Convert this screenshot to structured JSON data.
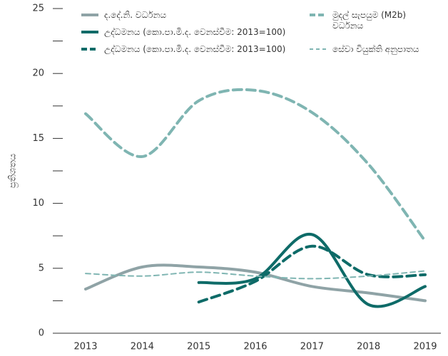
{
  "chart_data": {
    "type": "line",
    "y_label": "ප්‍රතිශතය",
    "categories": [
      "2013",
      "2014",
      "2015",
      "2016",
      "2017",
      "2018",
      "2019"
    ],
    "ylim": [
      0,
      25
    ],
    "yticks": [
      0,
      5,
      10,
      15,
      20,
      25
    ],
    "yticks_minor": [
      2.5,
      7.5,
      12.5,
      17.5,
      22.5
    ],
    "series": [
      {
        "name": "ද.දේ.නි. වර්ධනය",
        "color": "#8fa3a6",
        "style": "solid",
        "width": 4,
        "values": [
          3.4,
          5.1,
          5.1,
          4.7,
          3.6,
          3.1,
          2.5
        ]
      },
      {
        "name": "උද්ධමනය (කො.පා.මි.ද. වෙනස්වීම: 2013=100)",
        "color": "#0e6b68",
        "style": "solid",
        "width": 4,
        "values": [
          null,
          null,
          3.9,
          4.2,
          7.6,
          2.2,
          3.6
        ]
      },
      {
        "name": "උද්ධමනය (කො.පා.මි.ද. වෙනස්වීම: 2013=100)",
        "color": "#0e6b68",
        "style": "dashed",
        "width": 4,
        "values": [
          null,
          null,
          2.4,
          4.0,
          6.7,
          4.5,
          4.5
        ]
      },
      {
        "name": "මුදල් සැපයුම (M2b) වර්ධනය",
        "color": "#7fb5b2",
        "style": "dashed",
        "width": 4,
        "values": [
          16.9,
          13.6,
          17.9,
          18.7,
          17.0,
          13.0,
          7.1
        ]
      },
      {
        "name": "සේවා වියුක්ති අනුපාතය",
        "color": "#7fb5b2",
        "style": "dashed",
        "width": 2,
        "values": [
          4.6,
          4.4,
          4.7,
          4.4,
          4.2,
          4.4,
          4.8
        ]
      }
    ]
  }
}
